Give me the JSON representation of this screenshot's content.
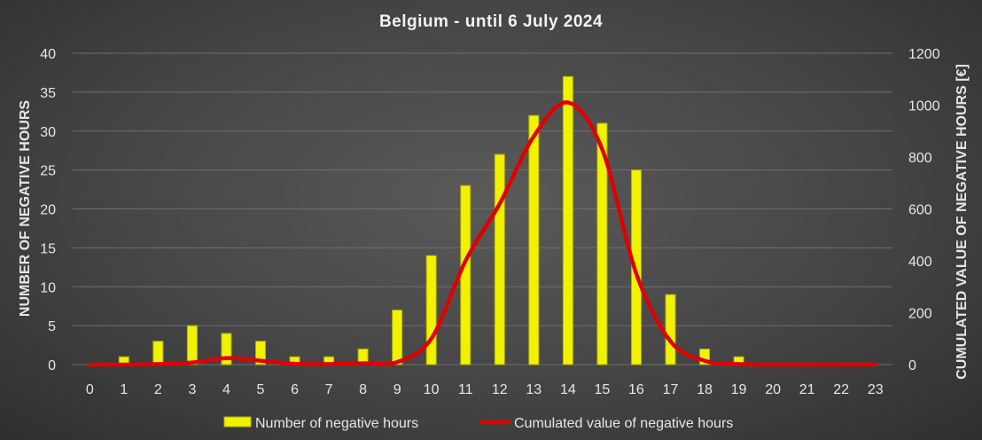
{
  "chart_data": {
    "type": "bar",
    "title": "Belgium - until 6 July 2024",
    "xlabel": "",
    "ylabel": "NUMBER OF NEGATIVE HOURS",
    "y2label": "CUMULATED VALUE OF NEGATIVE HOURS [€]",
    "ylim": [
      0,
      40
    ],
    "y2lim": [
      0,
      1200
    ],
    "yticks": [
      0,
      5,
      10,
      15,
      20,
      25,
      30,
      35,
      40
    ],
    "y2ticks": [
      0,
      200,
      400,
      600,
      800,
      1000,
      1200
    ],
    "grid": true,
    "legend_position": "bottom",
    "categories": [
      "0",
      "1",
      "2",
      "3",
      "4",
      "5",
      "6",
      "7",
      "8",
      "9",
      "10",
      "11",
      "12",
      "13",
      "14",
      "15",
      "16",
      "17",
      "18",
      "19",
      "20",
      "21",
      "22",
      "23"
    ],
    "series": [
      {
        "name": "Number of negative hours",
        "type": "bar",
        "axis": "left",
        "color": "#f2f200",
        "values": [
          0,
          1,
          3,
          5,
          4,
          3,
          1,
          1,
          2,
          7,
          14,
          23,
          27,
          32,
          37,
          31,
          25,
          9,
          2,
          1,
          0,
          0,
          0,
          0
        ]
      },
      {
        "name": "Cumulated value of negative hours",
        "type": "line",
        "axis": "right",
        "color": "#e00000",
        "values": [
          0,
          0,
          2,
          8,
          25,
          15,
          3,
          2,
          5,
          10,
          100,
          400,
          620,
          880,
          1010,
          830,
          350,
          90,
          15,
          2,
          0,
          0,
          0,
          0
        ]
      }
    ]
  }
}
